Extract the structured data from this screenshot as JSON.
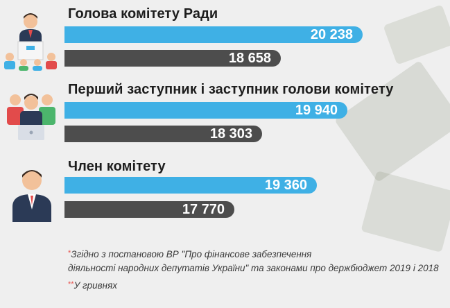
{
  "colors": {
    "blue_bar": "#3fb0e5",
    "gray_bar": "#4d4d4d",
    "star": "#e8544f",
    "background": "#efefef"
  },
  "chart_data": {
    "type": "bar",
    "orientation": "horizontal",
    "categories": [
      "Голова комітету Ради",
      "Перший заступник і заступник голови комітету",
      "Член комітету"
    ],
    "series": [
      {
        "values": [
          20238,
          19940,
          19360
        ],
        "labels": [
          "20 238",
          "19 940",
          "19 360"
        ],
        "color": "#3fb0e5"
      },
      {
        "values": [
          18658,
          18303,
          17770
        ],
        "labels": [
          "18 658",
          "18 303",
          "17 770"
        ],
        "color": "#4d4d4d"
      }
    ]
  },
  "icons": [
    "presenter-at-podium-icon",
    "group-with-laptop-icon",
    "person-icon"
  ],
  "footnotes": {
    "note1_star": "*",
    "note1_line1": "Згідно з постановою ВР \"Про фінансове забезпечення",
    "note1_line2": "діяльності народних депутатів України\" та законами про держбюджет 2019 і 2018",
    "note2_star": "**",
    "note2_text": "У гривнях"
  }
}
